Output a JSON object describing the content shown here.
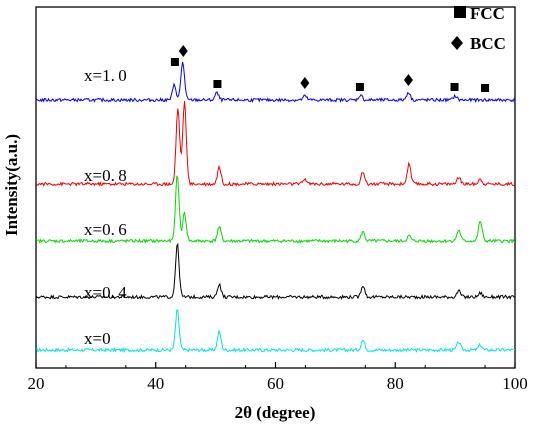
{
  "chart_data": {
    "type": "line",
    "xlabel": "2θ (degree)",
    "ylabel": "Intensity(a.u.)",
    "xlim": [
      20,
      100
    ],
    "xticks": [
      20,
      40,
      60,
      80,
      100
    ],
    "grid": false,
    "legend": {
      "placement": "top-right",
      "entries": [
        {
          "label": "FCC",
          "marker": "square"
        },
        {
          "label": "BCC",
          "marker": "diamond"
        }
      ]
    },
    "series": [
      {
        "name": "x=0",
        "color": "#00e5e5",
        "baseline": 0,
        "peaks": [
          [
            43.6,
            40
          ],
          [
            50.6,
            18
          ],
          [
            74.6,
            10
          ],
          [
            90.6,
            8
          ],
          [
            94.2,
            5
          ]
        ]
      },
      {
        "name": "x=0.4",
        "color": "#000000",
        "baseline": 1,
        "peaks": [
          [
            43.6,
            53
          ],
          [
            50.6,
            13
          ],
          [
            74.6,
            12
          ],
          [
            90.6,
            6
          ],
          [
            94.2,
            4
          ]
        ]
      },
      {
        "name": "x=0.6",
        "color": "#00dd00",
        "baseline": 2,
        "peaks": [
          [
            43.6,
            66
          ],
          [
            44.8,
            28
          ],
          [
            50.6,
            14
          ],
          [
            74.6,
            9
          ],
          [
            82.3,
            5
          ],
          [
            90.6,
            11
          ],
          [
            94.2,
            20
          ]
        ]
      },
      {
        "name": "x=0.8",
        "color": "#ee0000",
        "baseline": 3,
        "peaks": [
          [
            43.7,
            76
          ],
          [
            44.8,
            82
          ],
          [
            50.6,
            17
          ],
          [
            64.9,
            5
          ],
          [
            74.6,
            12
          ],
          [
            82.3,
            20
          ],
          [
            90.6,
            7
          ],
          [
            94.2,
            5
          ]
        ]
      },
      {
        "name": "x=1.0",
        "color": "#0000ee",
        "baseline": 4,
        "peaks": [
          [
            43.1,
            15
          ],
          [
            44.5,
            38
          ],
          [
            50.2,
            7
          ],
          [
            64.9,
            4
          ],
          [
            74.2,
            5
          ],
          [
            82.2,
            8
          ],
          [
            90.0,
            4
          ]
        ]
      }
    ],
    "series_labels": [
      "x=0",
      "x=0.4",
      "x=0.6",
      "x=0.8",
      "x=1.0"
    ],
    "phase_markers": [
      {
        "phase": "FCC",
        "x": 43.2,
        "series": "x=1.0"
      },
      {
        "phase": "BCC",
        "x": 44.6,
        "series": "x=1.0"
      },
      {
        "phase": "FCC",
        "x": 50.3,
        "series": "x=1.0"
      },
      {
        "phase": "BCC",
        "x": 64.9,
        "series": "x=1.0"
      },
      {
        "phase": "FCC",
        "x": 74.1,
        "series": "x=1.0"
      },
      {
        "phase": "BCC",
        "x": 82.2,
        "series": "x=1.0"
      },
      {
        "phase": "FCC",
        "x": 89.9,
        "series": "x=1.0"
      },
      {
        "phase": "FCC",
        "x": 95.0,
        "series": "x=1.0"
      }
    ]
  }
}
